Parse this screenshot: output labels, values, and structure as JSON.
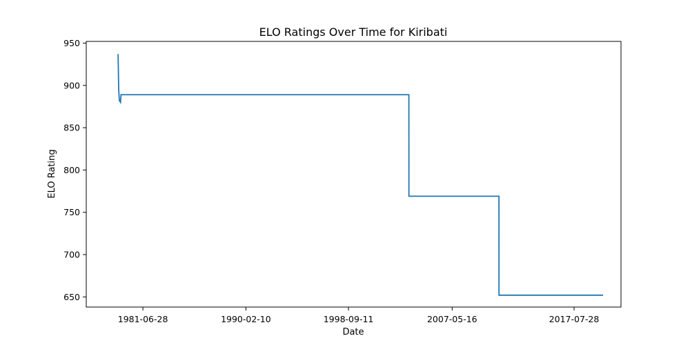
{
  "chart_data": {
    "type": "line",
    "title": "ELO Ratings Over Time for Kiribati",
    "xlabel": "Date",
    "ylabel": "ELO Rating",
    "x_ticks": [
      "1981-06-28",
      "1990-02-10",
      "1998-09-11",
      "2007-05-16",
      "2017-07-28"
    ],
    "y_ticks": [
      650,
      700,
      750,
      800,
      850,
      900,
      950
    ],
    "ylim": [
      638,
      952
    ],
    "xlim": [
      "1976-10-01",
      "2021-07-01"
    ],
    "grid": false,
    "legend": "none",
    "color": "#1f77b4",
    "series": [
      {
        "x": [
          "1979-06-01",
          "1979-06-20",
          "1979-07-10",
          "1979-07-30",
          "1979-08-15",
          "1979-08-30",
          "2003-10-01",
          "2003-10-02",
          "2011-04-15",
          "2011-04-16",
          "2020-01-01"
        ],
        "values": [
          937,
          895,
          882,
          881,
          880,
          889,
          889,
          769,
          769,
          652,
          652
        ]
      }
    ]
  }
}
